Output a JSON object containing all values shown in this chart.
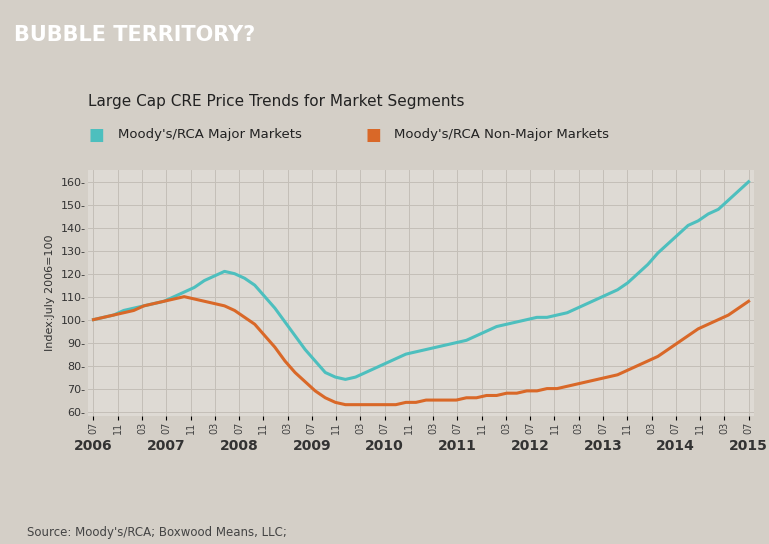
{
  "title_banner": "BUBBLE TERRITORY?",
  "subtitle": "Large Cap CRE Price Trends for Market Segments",
  "legend_major": "Moody's/RCA Major Markets",
  "legend_nonmajor": "Moody's/RCA Non-Major Markets",
  "ylabel": "Index:July 2006=100",
  "source": "Source: Moody's/RCA; Boxwood Means, LLC;",
  "banner_color": "#4a5472",
  "banner_text_color": "#ffffff",
  "bg_color": "#d4cfc7",
  "plot_bg_color": "#dedad4",
  "grid_color": "#c4bfb8",
  "major_color": "#4dbfbe",
  "nonmajor_color": "#d96828",
  "ylim": [
    58,
    165
  ],
  "yticks": [
    60,
    70,
    80,
    90,
    100,
    110,
    120,
    130,
    140,
    150,
    160
  ],
  "ytick_labels": [
    "60-",
    "70-",
    "80-",
    "90-",
    "100-",
    "110-",
    "120-",
    "130-",
    "140-",
    "150-",
    "160-"
  ],
  "major_data": [
    100,
    101,
    102,
    104,
    105,
    106,
    107,
    108,
    110,
    112,
    114,
    117,
    119,
    121,
    120,
    118,
    115,
    110,
    105,
    99,
    93,
    87,
    82,
    77,
    75,
    74,
    75,
    77,
    79,
    81,
    83,
    85,
    86,
    87,
    88,
    89,
    90,
    91,
    93,
    95,
    97,
    98,
    99,
    100,
    101,
    101,
    102,
    103,
    105,
    107,
    109,
    111,
    113,
    116,
    120,
    124,
    129,
    133,
    137,
    141,
    143,
    146,
    148,
    152,
    156,
    160
  ],
  "nonmajor_data": [
    100,
    101,
    102,
    103,
    104,
    106,
    107,
    108,
    109,
    110,
    109,
    108,
    107,
    106,
    104,
    101,
    98,
    93,
    88,
    82,
    77,
    73,
    69,
    66,
    64,
    63,
    63,
    63,
    63,
    63,
    63,
    64,
    64,
    65,
    65,
    65,
    65,
    66,
    66,
    67,
    67,
    68,
    68,
    69,
    69,
    70,
    70,
    71,
    72,
    73,
    74,
    75,
    76,
    78,
    80,
    82,
    84,
    87,
    90,
    93,
    96,
    98,
    100,
    102,
    105,
    108
  ],
  "x_minor_labels": [
    "07",
    "11",
    "03",
    "07",
    "11",
    "03",
    "07",
    "11",
    "03",
    "07",
    "11",
    "03",
    "07",
    "11",
    "03",
    "07",
    "11",
    "03",
    "07",
    "11",
    "03",
    "07",
    "11",
    "03",
    "07",
    "11",
    "03",
    "07"
  ],
  "x_year_labels": [
    "2006",
    "2007",
    "2008",
    "2009",
    "2010",
    "2011",
    "2012",
    "2013",
    "2014",
    "2015"
  ],
  "n_points": 66,
  "line_width": 2.2
}
